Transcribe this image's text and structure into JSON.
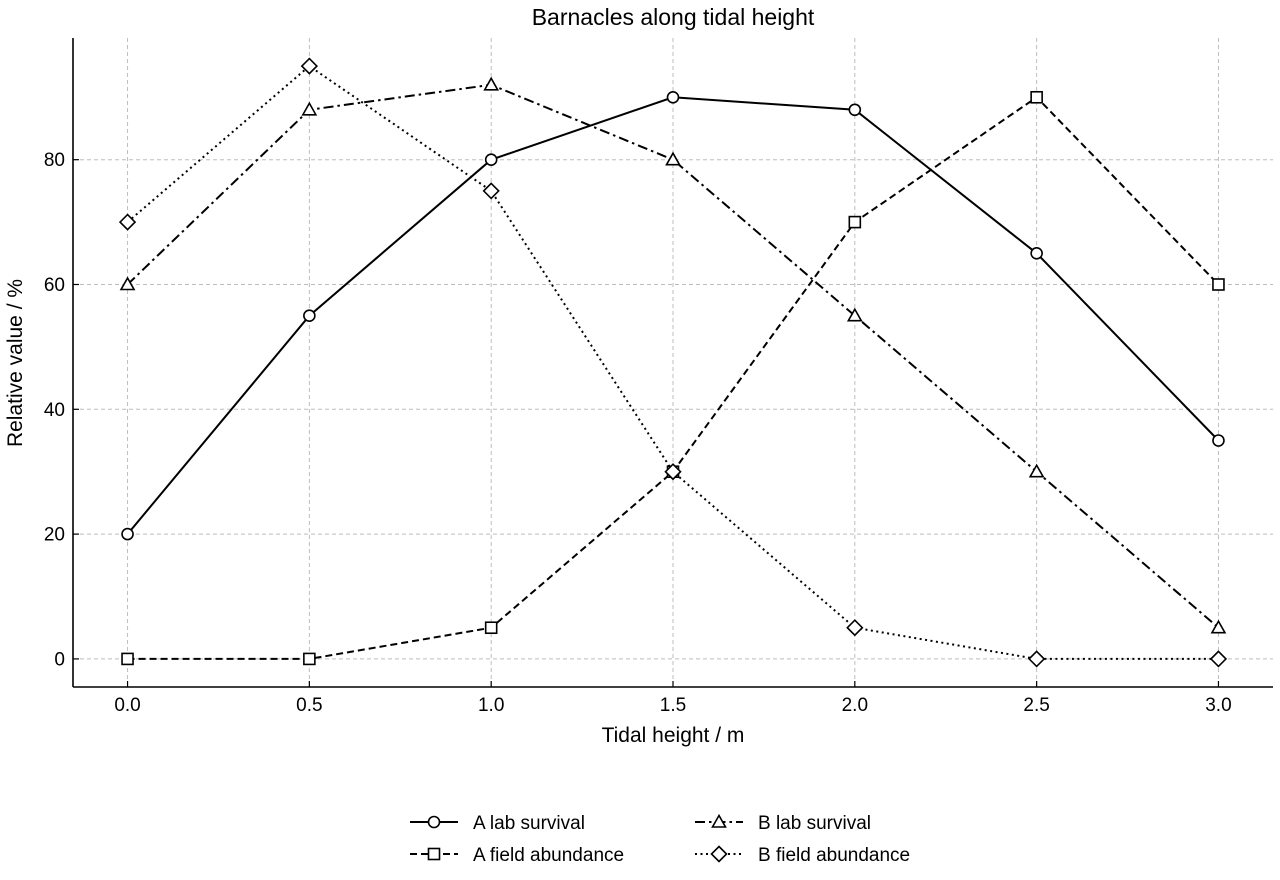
{
  "chart_data": {
    "type": "line",
    "title": "Barnacles along tidal height",
    "xlabel": "Tidal height / m",
    "ylabel": "Relative value / %",
    "x": [
      0.0,
      0.5,
      1.0,
      1.5,
      2.0,
      2.5,
      3.0
    ],
    "xticks": [
      "0.0",
      "0.5",
      "1.0",
      "1.5",
      "2.0",
      "2.5",
      "3.0"
    ],
    "yticks": [
      "0",
      "20",
      "40",
      "60",
      "80"
    ],
    "xlim": [
      -0.15,
      3.15
    ],
    "ylim": [
      -4.5,
      99.5
    ],
    "grid": true,
    "legend_position": "bottom-center",
    "series": [
      {
        "name": "A lab survival",
        "values": [
          20,
          55,
          80,
          90,
          88,
          65,
          35
        ],
        "marker": "circle",
        "dash": "solid",
        "color": "#000000"
      },
      {
        "name": "A field abundance",
        "values": [
          0,
          0,
          5,
          30,
          70,
          90,
          60
        ],
        "marker": "square",
        "dash": "dashed",
        "color": "#000000"
      },
      {
        "name": "B lab survival",
        "values": [
          60,
          88,
          92,
          80,
          55,
          30,
          5
        ],
        "marker": "triangle",
        "dash": "dashdot",
        "color": "#000000"
      },
      {
        "name": "B field abundance",
        "values": [
          70,
          95,
          75,
          30,
          5,
          0,
          0
        ],
        "marker": "diamond",
        "dash": "dotted",
        "color": "#000000"
      }
    ]
  }
}
